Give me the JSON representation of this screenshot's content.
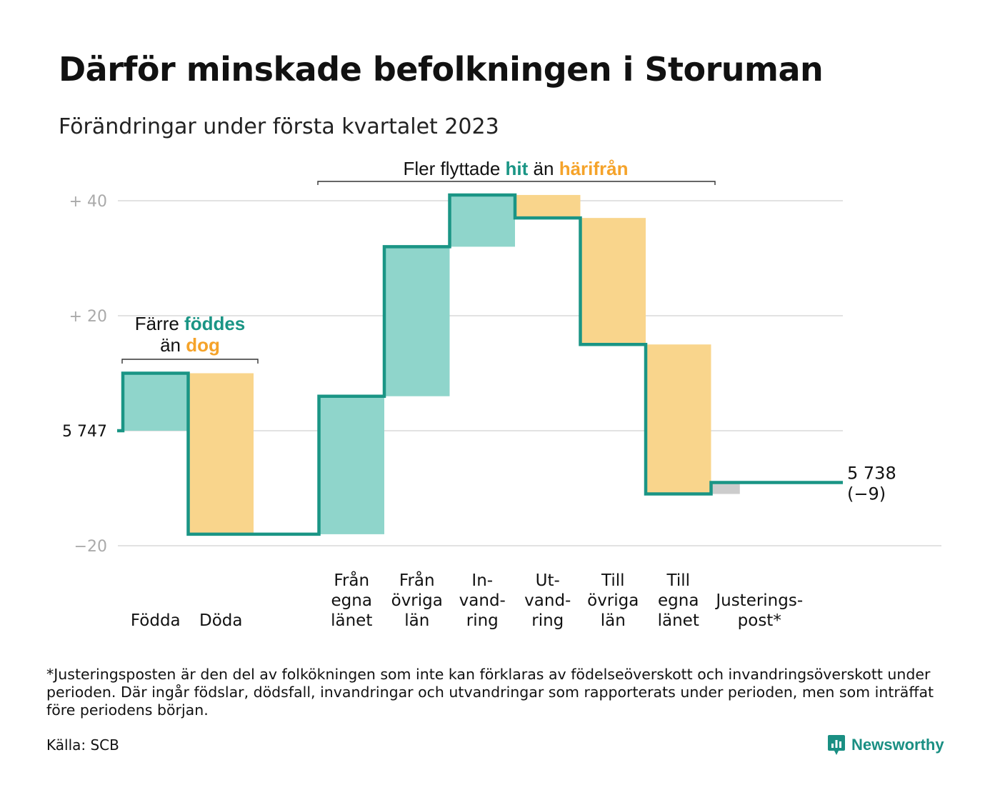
{
  "title": "Därför minskade befolkningen i Storuman",
  "subtitle": "Förändringar under första kvartalet 2023",
  "colors": {
    "increase_fill": "#8fd5cb",
    "decrease_fill": "#f9d58c",
    "adjustment_fill": "#cccccc",
    "step_line": "#1a9585",
    "teal_text": "#1a9585",
    "orange_text": "#f5a32a",
    "grid": "#e2e2e2"
  },
  "chart_data": {
    "type": "waterfall",
    "start_value": 5747,
    "start_label": "5 747",
    "end_value": 5738,
    "end_label": "5 738",
    "end_change_label": "(−9)",
    "y_ticks": [
      {
        "value": 40,
        "label": "+ 40"
      },
      {
        "value": 20,
        "label": "+ 20"
      },
      {
        "value": -20,
        "label": "−20"
      }
    ],
    "ylim": [
      -20,
      40
    ],
    "steps": [
      {
        "label": [
          "Födda"
        ],
        "change": 10,
        "kind": "increase"
      },
      {
        "label": [
          "Döda"
        ],
        "change": -28,
        "kind": "decrease"
      },
      {
        "label": [],
        "change": 0,
        "kind": "gap"
      },
      {
        "label": [
          "Från",
          "egna",
          "länet"
        ],
        "change": 24,
        "kind": "increase"
      },
      {
        "label": [
          "Från",
          "övriga",
          "län"
        ],
        "change": 26,
        "kind": "increase"
      },
      {
        "label": [
          "In-",
          "vand-",
          "ring"
        ],
        "change": 9,
        "kind": "increase"
      },
      {
        "label": [
          "Ut-",
          "vand-",
          "ring"
        ],
        "change": -4,
        "kind": "decrease"
      },
      {
        "label": [
          "Till",
          "övriga",
          "län"
        ],
        "change": -22,
        "kind": "decrease"
      },
      {
        "label": [
          "Till",
          "egna",
          "länet"
        ],
        "change": -26,
        "kind": "decrease"
      },
      {
        "label": [
          "Justerings-",
          "post*"
        ],
        "change": 2,
        "kind": "adjustment"
      }
    ],
    "annotations": [
      {
        "line1": [
          {
            "text": "Färre ",
            "style": "plain"
          },
          {
            "text": "föddes",
            "style": "teal"
          }
        ],
        "line2": [
          {
            "text": "än ",
            "style": "plain"
          },
          {
            "text": "dog",
            "style": "orange"
          }
        ]
      },
      {
        "line1": [
          {
            "text": "Fler flyttade ",
            "style": "plain"
          },
          {
            "text": "hit",
            "style": "teal"
          },
          {
            "text": " än ",
            "style": "plain"
          },
          {
            "text": "härifrån",
            "style": "orange"
          }
        ]
      }
    ]
  },
  "footnote": "*Justeringsposten är den del av folkökningen som inte kan förklaras av födelseöverskott och invandringsöverskott under perioden. Där ingår födslar, dödsfall, invandringar och utvandringar som rapporterats under perioden, men som inträffat före periodens början.",
  "source": "Källa: SCB",
  "brand": {
    "name": "Newsworthy",
    "icon": "newsworthy-logo-icon"
  }
}
